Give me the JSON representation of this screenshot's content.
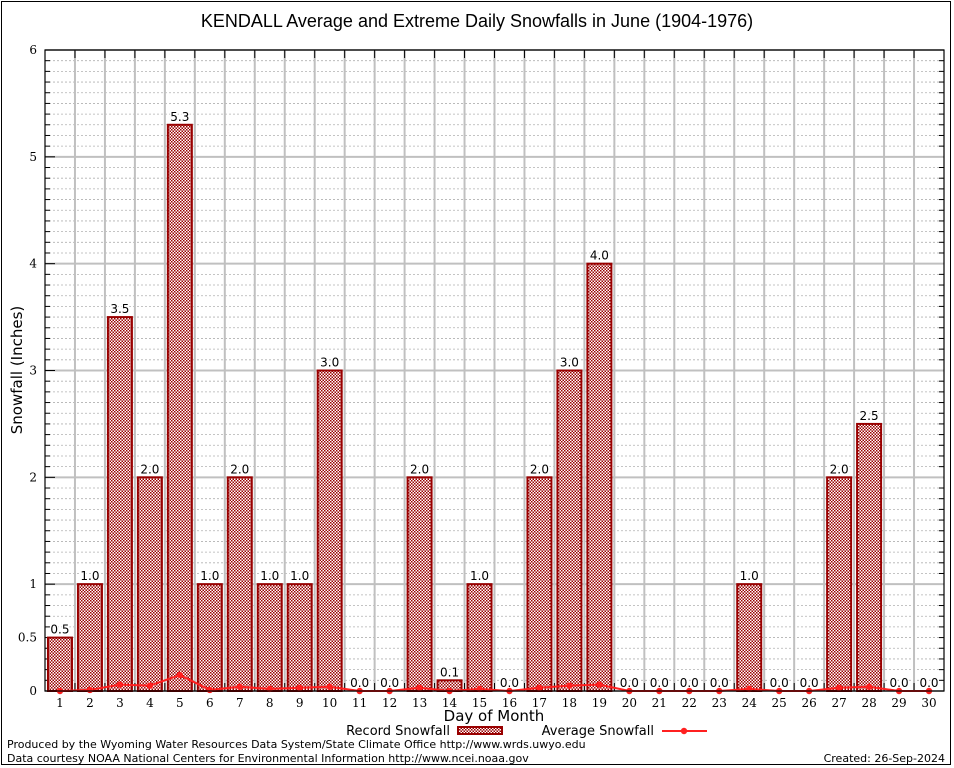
{
  "chart_data": {
    "type": "bar",
    "title": "KENDALL Average and Extreme Daily Snowfalls in June (1904-1976)",
    "xlabel": "Day of Month",
    "ylabel": "Snowfall (Inches)",
    "ylim": [
      0,
      6
    ],
    "yticks": [
      0,
      1,
      2,
      3,
      4,
      5,
      6
    ],
    "ytick_extra_label": "0.5",
    "grid": true,
    "categories": [
      "1",
      "2",
      "3",
      "4",
      "5",
      "6",
      "7",
      "8",
      "9",
      "10",
      "11",
      "12",
      "13",
      "14",
      "15",
      "16",
      "17",
      "18",
      "19",
      "20",
      "21",
      "22",
      "23",
      "24",
      "25",
      "26",
      "27",
      "28",
      "29",
      "30"
    ],
    "series": [
      {
        "name": "Record Snowfall",
        "type": "bar",
        "color": "#990000",
        "values": [
          0.5,
          1.0,
          3.5,
          2.0,
          5.3,
          1.0,
          2.0,
          1.0,
          1.0,
          3.0,
          0.0,
          0.0,
          2.0,
          0.1,
          1.0,
          0.0,
          2.0,
          3.0,
          4.0,
          0.0,
          0.0,
          0.0,
          0.0,
          1.0,
          0.0,
          0.0,
          2.0,
          2.5,
          0.0,
          0.0
        ],
        "labels": [
          "0.5",
          "1.0",
          "3.5",
          "2.0",
          "5.3",
          "1.0",
          "2.0",
          "1.0",
          "1.0",
          "3.0",
          "0.0",
          "0.0",
          "2.0",
          "0.1",
          "1.0",
          "0.0",
          "2.0",
          "3.0",
          "4.0",
          "0.0",
          "0.0",
          "0.0",
          "0.0",
          "1.0",
          "0.0",
          "0.0",
          "2.0",
          "2.5",
          "0.0",
          "0.0"
        ]
      },
      {
        "name": "Average Snowfall",
        "type": "line",
        "color": "#ff2020",
        "values": [
          0.0,
          0.01,
          0.06,
          0.05,
          0.15,
          0.01,
          0.04,
          0.02,
          0.03,
          0.04,
          0.0,
          0.0,
          0.03,
          0.0,
          0.02,
          0.0,
          0.03,
          0.05,
          0.06,
          0.0,
          0.0,
          0.0,
          0.0,
          0.02,
          0.0,
          0.0,
          0.03,
          0.04,
          0.0,
          0.0
        ]
      }
    ],
    "legend": {
      "placement": "bottom-center",
      "entries": [
        "Record Snowfall",
        "Average Snowfall"
      ]
    }
  },
  "footer": {
    "produced_by": "Produced by the Wyoming Water Resources Data System/State Climate Office http://www.wrds.uwyo.edu",
    "courtesy": "Data courtesy NOAA National Centers for Environmental Information http://www.ncei.noaa.gov",
    "created": "Created: 26-Sep-2024"
  }
}
